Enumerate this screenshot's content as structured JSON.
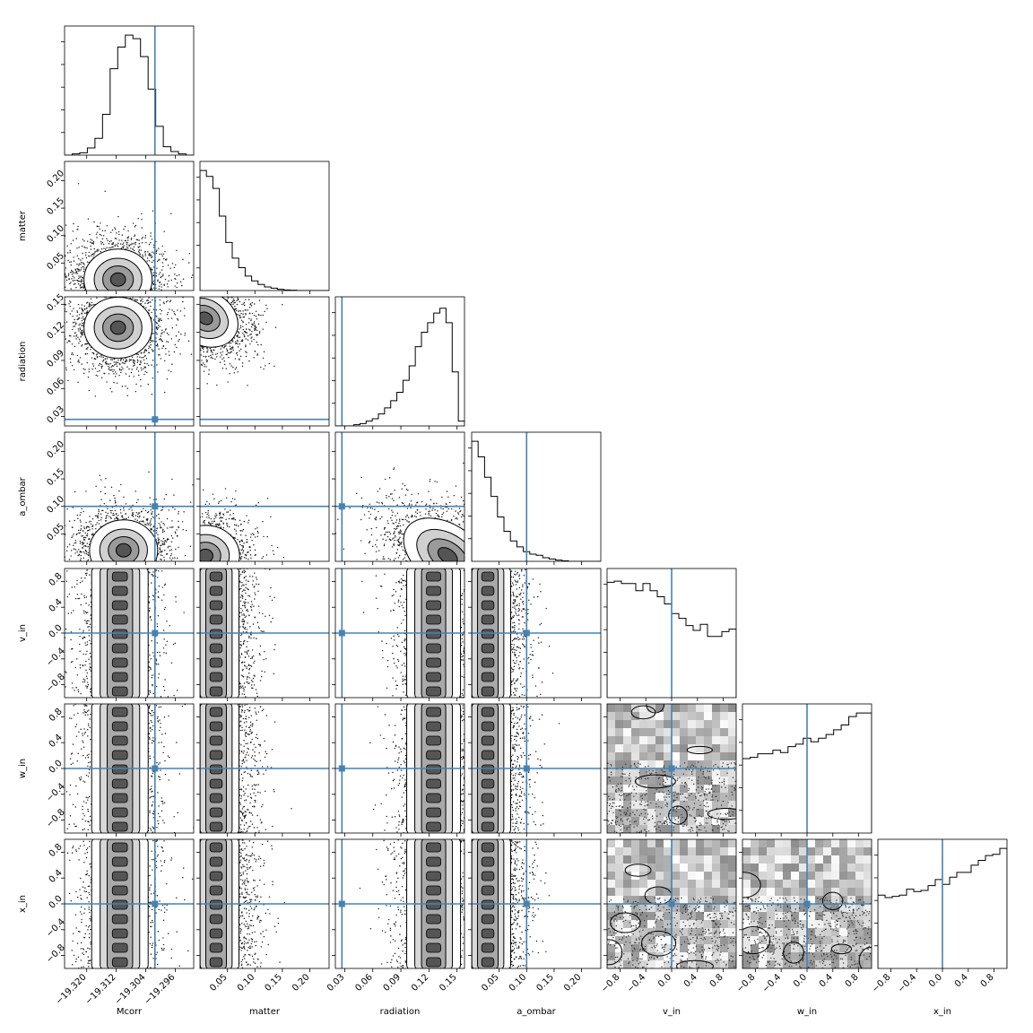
{
  "chart_data": {
    "type": "corner",
    "params": [
      "Mcorr",
      "matter",
      "radiation",
      "a_ombar",
      "v_in",
      "w_in",
      "x_in"
    ],
    "axis_labels": [
      "Mcorr",
      "matter",
      "radiation",
      "a_ombar",
      "v_in",
      "w_in",
      "x_in"
    ],
    "ranges": [
      [
        -19.326,
        -19.291
      ],
      [
        0.0,
        0.235
      ],
      [
        0.02,
        0.158
      ],
      [
        0.0,
        0.235
      ],
      [
        -1.0,
        1.0
      ],
      [
        -1.0,
        1.0
      ],
      [
        -1.0,
        1.0
      ]
    ],
    "ticks": [
      [
        -19.32,
        -19.312,
        -19.304,
        -19.296
      ],
      [
        0.05,
        0.1,
        0.15,
        0.2
      ],
      [
        0.03,
        0.06,
        0.09,
        0.12,
        0.15
      ],
      [
        0.05,
        0.1,
        0.15,
        0.2
      ],
      [
        -0.8,
        -0.4,
        0.0,
        0.4,
        0.8
      ],
      [
        -0.8,
        -0.4,
        0.0,
        0.4,
        0.8
      ],
      [
        -0.8,
        -0.4,
        0.0,
        0.4,
        0.8
      ]
    ],
    "tick_labels": [
      [
        "−19.320",
        "−19.312",
        "−19.304",
        "−19.296"
      ],
      [
        "0.05",
        "0.10",
        "0.15",
        "0.20"
      ],
      [
        "0.03",
        "0.06",
        "0.09",
        "0.12",
        "0.15"
      ],
      [
        "0.05",
        "0.10",
        "0.15",
        "0.20"
      ],
      [
        "−0.8",
        "−0.4",
        "0.0",
        "0.4",
        "0.8"
      ],
      [
        "−0.8",
        "−0.4",
        "0.0",
        "0.4",
        "0.8"
      ],
      [
        "−0.8",
        "−0.4",
        "0.0",
        "0.4",
        "0.8"
      ]
    ],
    "truths": [
      -19.3015,
      null,
      0.027,
      0.1,
      0.0,
      0.0,
      0.0
    ],
    "truth_color": "#4682b4",
    "histograms": [
      [
        0.0,
        0.01,
        0.02,
        0.06,
        0.14,
        0.34,
        0.72,
        0.9,
        1.0,
        0.97,
        0.82,
        0.55,
        0.24,
        0.07,
        0.03,
        0.01,
        0.0
      ],
      [
        1.0,
        0.95,
        0.85,
        0.62,
        0.4,
        0.27,
        0.19,
        0.12,
        0.08,
        0.05,
        0.03,
        0.02,
        0.01,
        0.005,
        0.003,
        0.0,
        0.0,
        0.0,
        0.0,
        0.0
      ],
      [
        0.0,
        0.0,
        0.0,
        0.01,
        0.02,
        0.04,
        0.06,
        0.1,
        0.15,
        0.21,
        0.28,
        0.38,
        0.5,
        0.66,
        0.78,
        0.86,
        0.94,
        0.98,
        0.86,
        0.45,
        0.04
      ],
      [
        1.0,
        0.87,
        0.7,
        0.54,
        0.37,
        0.25,
        0.17,
        0.12,
        0.08,
        0.06,
        0.05,
        0.03,
        0.02,
        0.01,
        0.005,
        0.0,
        0.0,
        0.0,
        0.0,
        0.0
      ],
      [
        0.96,
        0.97,
        0.95,
        0.95,
        0.89,
        0.95,
        0.89,
        0.84,
        0.78,
        0.7,
        0.66,
        0.6,
        0.56,
        0.61,
        0.51,
        0.51,
        0.55,
        0.57
      ],
      [
        0.62,
        0.63,
        0.66,
        0.66,
        0.69,
        0.67,
        0.72,
        0.74,
        0.79,
        0.76,
        0.79,
        0.82,
        0.86,
        0.9,
        0.97,
        1.0,
        1.0
      ],
      [
        0.61,
        0.59,
        0.6,
        0.61,
        0.66,
        0.64,
        0.65,
        0.69,
        0.74,
        0.7,
        0.76,
        0.8,
        0.8,
        0.86,
        0.9,
        0.94,
        0.95,
        1.0
      ]
    ],
    "pair_peaks": {
      "1_0": [
        -19.3115,
        0.02
      ],
      "2_0": [
        -19.3115,
        0.125
      ],
      "3_0": [
        -19.31,
        0.02
      ],
      "4_0": [
        -19.311,
        0.0
      ],
      "5_0": [
        -19.311,
        0.0
      ],
      "6_0": [
        -19.311,
        0.0
      ],
      "2_1": [
        0.01,
        0.135
      ],
      "3_1": [
        0.01,
        0.01
      ],
      "4_1": [
        0.02,
        0.0
      ],
      "5_1": [
        0.02,
        0.0
      ],
      "6_1": [
        0.02,
        0.0
      ],
      "3_2": [
        0.14,
        0.01
      ],
      "4_2": [
        0.125,
        0.0
      ],
      "5_2": [
        0.125,
        0.0
      ],
      "6_2": [
        0.125,
        0.0
      ],
      "4_3": [
        0.02,
        0.0
      ],
      "5_3": [
        0.02,
        0.0
      ],
      "6_3": [
        0.02,
        0.0
      ],
      "5_4": [
        0.0,
        0.0
      ],
      "6_4": [
        0.0,
        0.0
      ],
      "6_5": [
        0.0,
        0.0
      ]
    }
  }
}
